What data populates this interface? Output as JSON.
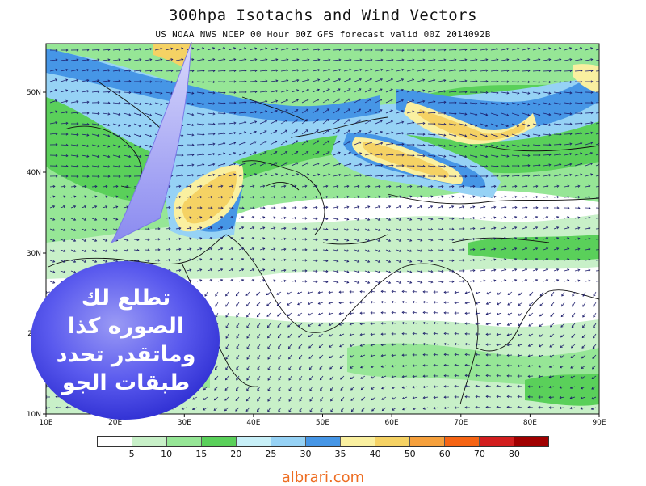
{
  "header": {
    "title": "300hpa Isotachs and Wind Vectors",
    "subtitle": "US NOAA NWS NCEP 00 Hour 00Z GFS forecast valid 00Z 2014092B"
  },
  "map": {
    "lon_labels": [
      "10E",
      "20E",
      "30E",
      "40E",
      "50E",
      "60E",
      "70E",
      "80E",
      "90E"
    ],
    "lat_labels": [
      "50N",
      "40N",
      "30N",
      "2",
      "10N"
    ],
    "lon_range": [
      10,
      90
    ],
    "lat_range": [
      10,
      56
    ],
    "land_color": "#ffffff",
    "shading_colors": [
      "#ffffff",
      "#c8f0c8",
      "#96e696",
      "#5ad05a",
      "#c8f0f8",
      "#96d2f5",
      "#4696e6",
      "#faf0a0",
      "#f5d264",
      "#f5a03c",
      "#f56414",
      "#d21e1e",
      "#a00000"
    ]
  },
  "legend": {
    "labels": [
      "5",
      "10",
      "15",
      "20",
      "25",
      "30",
      "35",
      "40",
      "50",
      "60",
      "70",
      "80"
    ],
    "colors": [
      "#ffffff",
      "#c8f0c8",
      "#96e696",
      "#5ad05a",
      "#c8f0f8",
      "#96d2f5",
      "#4696e6",
      "#faf0a0",
      "#f5d264",
      "#f5a03c",
      "#f56414",
      "#d21e1e",
      "#a00000"
    ]
  },
  "callout": {
    "text": "تطلع لك\nالصوره كذا\nوماتقدر تحدد\nطبقات الجو",
    "color": "#4f4fe8"
  },
  "watermark": {
    "text": "albrari.com",
    "color": "#ee6d22"
  }
}
